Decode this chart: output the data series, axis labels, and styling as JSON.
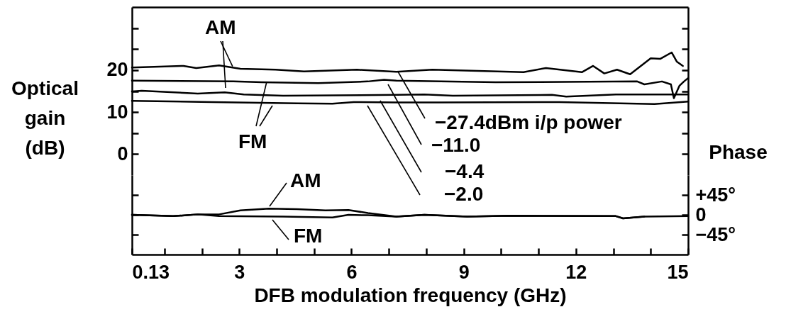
{
  "chart_data": [
    {
      "type": "line",
      "ylabel": "Optical gain (dB)",
      "xlim": [
        0.13,
        15
      ],
      "ylim": [
        -5,
        35
      ],
      "tick_labels": "y",
      "yticks": [
        0,
        {
          "value": 5,
          "label": null
        },
        10,
        {
          "value": 15,
          "label": null
        },
        20,
        {
          "value": 25,
          "label": null
        },
        {
          "value": 30,
          "label": null
        }
      ],
      "annotations": [
        {
          "text": "AM",
          "x": 2.82,
          "y": 20.9
        },
        {
          "text": "FM",
          "x": 3.73,
          "y": 17.1
        }
      ],
      "series": [
        {
          "name": "−27.4dBm i/p power",
          "color": "#000000",
          "x": [
            0.13,
            1.51,
            1.85,
            2.46,
            3.03,
            3.97,
            4.73,
            6.15,
            7.2,
            8.16,
            10.6,
            11.2,
            12.16,
            12.46,
            12.76,
            13.1,
            13.45,
            14.0,
            14.26,
            14.56,
            14.7,
            14.86
          ],
          "values": [
            20.6,
            21.0,
            20.5,
            21.1,
            20.3,
            20.1,
            19.7,
            20.1,
            19.6,
            20.1,
            19.5,
            20.5,
            19.5,
            21.0,
            19.2,
            20.1,
            19.0,
            22.8,
            22.7,
            24.2,
            22.0,
            21.0
          ]
        },
        {
          "name": "−11.0",
          "color": "#000000",
          "x": [
            0.13,
            2.84,
            3.6,
            5.11,
            6.44,
            6.87,
            7.2,
            9.85,
            13.64,
            13.83,
            14.3,
            14.54,
            14.62,
            14.77,
            14.89,
            15
          ],
          "values": [
            17.5,
            17.3,
            17.1,
            16.9,
            17.3,
            17.7,
            17.5,
            17.1,
            17.3,
            16.6,
            17.3,
            16.6,
            13.3,
            16.3,
            17.3,
            18.1
          ]
        },
        {
          "name": "−4.4",
          "color": "#000000",
          "x": [
            0.13,
            0.39,
            1.89,
            2.61,
            3.12,
            4.17,
            7.2,
            7.95,
            8.71,
            11.36,
            11.74,
            13.07,
            15
          ],
          "values": [
            14.9,
            15.1,
            14.4,
            14.7,
            14.2,
            13.9,
            14.1,
            14.2,
            13.9,
            14.1,
            13.7,
            14.2,
            14.2
          ]
        },
        {
          "name": "−2.0",
          "color": "#000000",
          "x": [
            0.13,
            2.27,
            4.54,
            5.49,
            6.06,
            7.2,
            8.33,
            11.55,
            14.1,
            15
          ],
          "values": [
            12.7,
            12.4,
            12.1,
            12.0,
            12.4,
            12.3,
            12.3,
            12.4,
            11.9,
            12.5
          ]
        }
      ]
    },
    {
      "type": "line",
      "xlabel": "DFB modulation frequency  (GHz)",
      "y2label": "Phase",
      "xlim": [
        0.13,
        15
      ],
      "y2lim": [
        -90,
        90
      ],
      "xticks": [
        0.13,
        {
          "value": 1,
          "label": null
        },
        {
          "value": 2,
          "label": null
        },
        3,
        {
          "value": 4,
          "label": null
        },
        {
          "value": 5,
          "label": null
        },
        6,
        {
          "value": 7,
          "label": null
        },
        {
          "value": 8,
          "label": null
        },
        9,
        {
          "value": 10,
          "label": null
        },
        {
          "value": 11,
          "label": null
        },
        12,
        {
          "value": 13,
          "label": null
        },
        {
          "value": 14,
          "label": null
        },
        15
      ],
      "y2ticks": [
        {
          "value": 45,
          "label": "+45°"
        },
        0,
        {
          "value": -45,
          "label": "−45°"
        }
      ],
      "series": [
        {
          "name": "AM",
          "color": "#000000",
          "axis": "y2",
          "x": [
            0.13,
            1.23,
            1.89,
            2.46,
            3.03,
            3.79,
            4.54,
            5.3,
            5.92,
            6.44,
            7.2,
            7.95,
            9.09,
            10.23,
            13.07,
            13.26,
            13.83,
            15
          ],
          "values": [
            0,
            -3,
            1,
            1,
            10,
            14,
            13,
            10,
            11,
            4,
            -4,
            0,
            -4,
            -2,
            -3,
            -8,
            -4,
            -3
          ]
        },
        {
          "name": "FM",
          "color": "#000000",
          "axis": "y2",
          "x": [
            0.13,
            1.23,
            1.89,
            2.46,
            4.17,
            5.49,
            5.92,
            6.44,
            7.2,
            7.95,
            9.09,
            10.23,
            13.07,
            13.26,
            13.83
          ],
          "values": [
            0,
            -3,
            1,
            -3,
            -4,
            -6,
            0,
            -1,
            -4,
            0,
            -4,
            -2,
            -3,
            -8,
            -4
          ]
        }
      ]
    }
  ]
}
